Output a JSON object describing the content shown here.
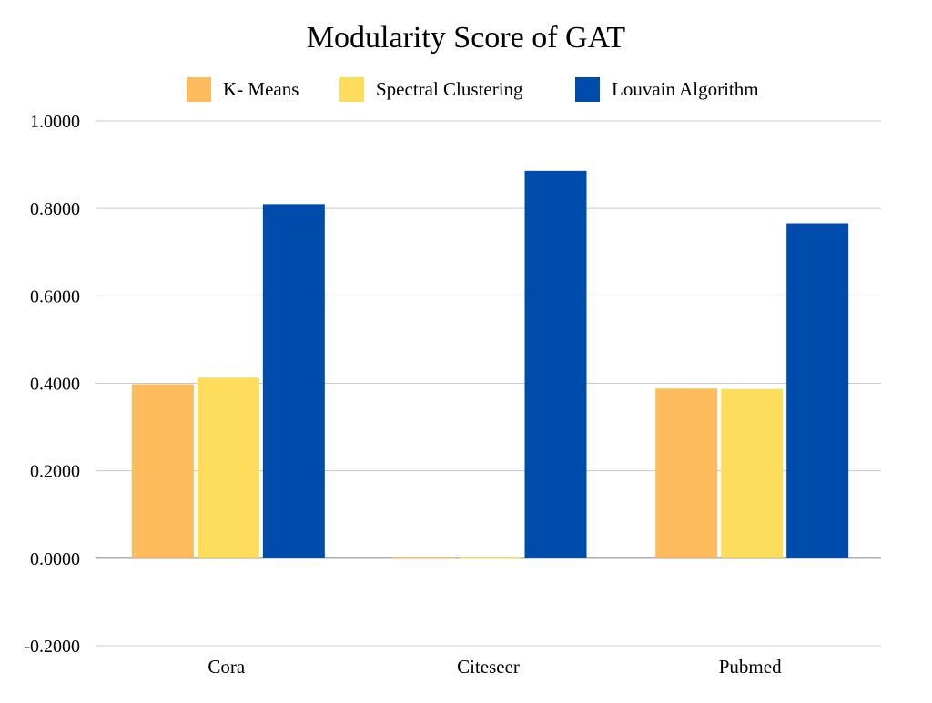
{
  "chart_data": {
    "type": "bar",
    "title": "Modularity Score of GAT",
    "xlabel": "",
    "ylabel": "",
    "categories": [
      "Cora",
      "Citeseer",
      "Pubmed"
    ],
    "series": [
      {
        "name": "K- Means",
        "color": "#FFBB5C",
        "values": [
          0.398,
          0.002,
          0.388
        ]
      },
      {
        "name": "Spectral Clustering",
        "color": "#FFDD5C",
        "values": [
          0.413,
          0.002,
          0.387
        ]
      },
      {
        "name": "Louvain Algorithm",
        "color": "#004CAD",
        "values": [
          0.81,
          0.886,
          0.766
        ]
      }
    ],
    "ylim": [
      -0.2,
      1.0
    ],
    "yticks": [
      "-0.2000",
      "0.0000",
      "0.2000",
      "0.4000",
      "0.6000",
      "0.8000",
      "1.0000"
    ],
    "ytick_values": [
      -0.2,
      0,
      0.2,
      0.4,
      0.6,
      0.8,
      1.0
    ],
    "grid": true,
    "legend_position": "top"
  }
}
